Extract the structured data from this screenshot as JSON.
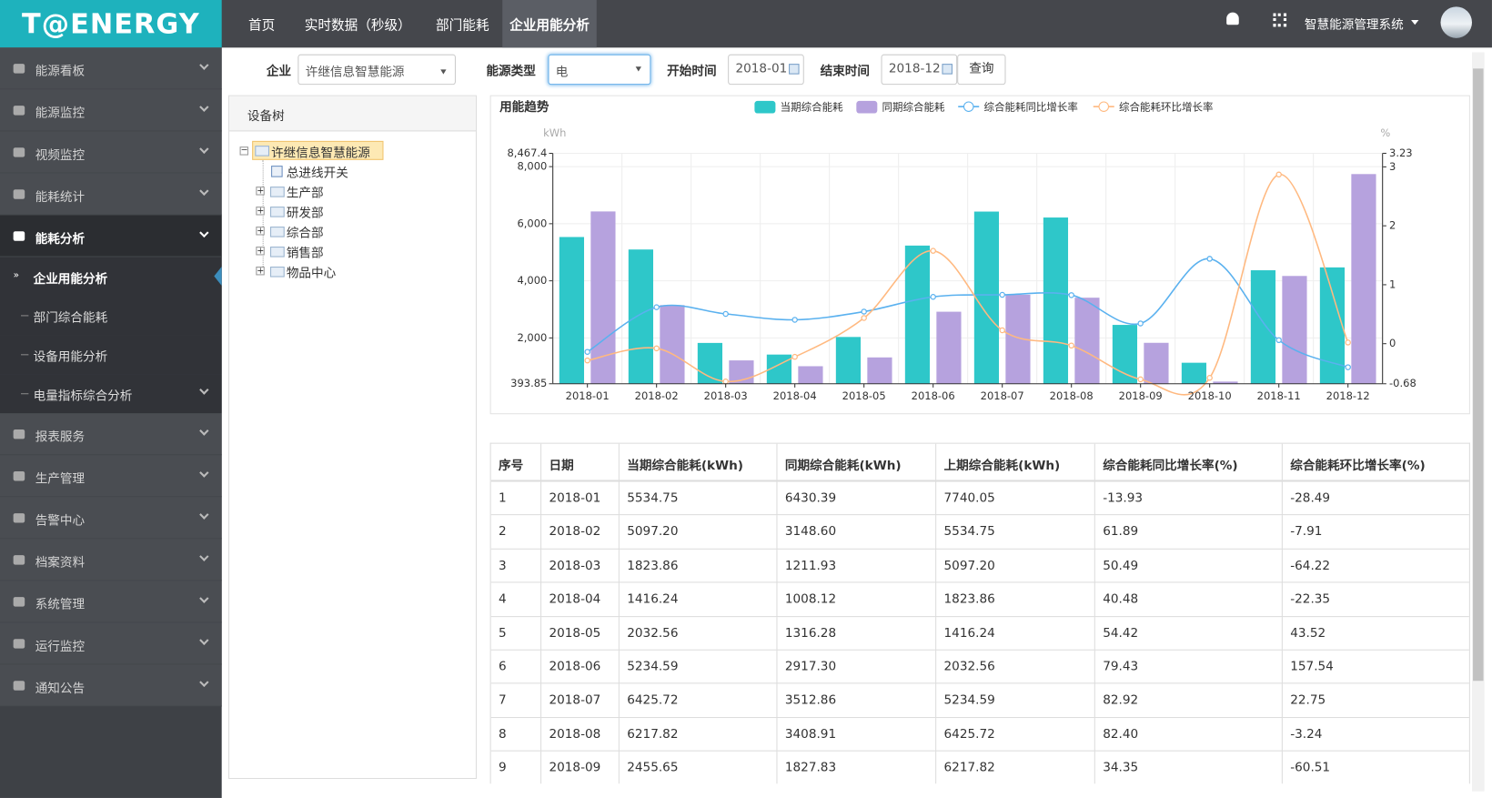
{
  "header": {
    "logo": "T@ENERGY",
    "nav": [
      "首页",
      "实时数据（秒级）",
      "部门能耗",
      "企业用能分析"
    ],
    "system": "智慧能源管理系统"
  },
  "sidebar": {
    "items": [
      {
        "label": "能源看板"
      },
      {
        "label": "能源监控"
      },
      {
        "label": "视频监控"
      },
      {
        "label": "能耗统计"
      },
      {
        "label": "能耗分析",
        "children": [
          "企业用能分析",
          "部门综合能耗",
          "设备用能分析",
          "电量指标综合分析"
        ]
      },
      {
        "label": "报表服务"
      },
      {
        "label": "生产管理"
      },
      {
        "label": "告警中心"
      },
      {
        "label": "档案资料"
      },
      {
        "label": "系统管理"
      },
      {
        "label": "运行监控"
      },
      {
        "label": "通知公告"
      }
    ]
  },
  "filters": {
    "company_label": "企业",
    "company": "许继信息智慧能源",
    "energy_label": "能源类型",
    "energy": "电",
    "start_label": "开始时间",
    "start": "2018-01",
    "end_label": "结束时间",
    "end": "2018-12",
    "query": "查询"
  },
  "tree": {
    "title": "设备树",
    "root": "许继信息智慧能源",
    "nodes": [
      "总进线开关",
      "生产部",
      "研发部",
      "综合部",
      "销售部",
      "物品中心"
    ]
  },
  "chart_data": {
    "type": "bar",
    "title": "用能趋势",
    "y_label": "kWh",
    "y2_label": "%",
    "categories": [
      "2018-01",
      "2018-02",
      "2018-03",
      "2018-04",
      "2018-05",
      "2018-06",
      "2018-07",
      "2018-08",
      "2018-09",
      "2018-10",
      "2018-11",
      "2018-12"
    ],
    "series": [
      {
        "name": "当期综合能耗",
        "type": "bar",
        "color": "#2ec7c9",
        "values": [
          5534.75,
          5097.2,
          1823.86,
          1416.24,
          2032.56,
          5234.59,
          6425.72,
          6217.82,
          2455.65,
          1130,
          4370,
          4470
        ]
      },
      {
        "name": "同期综合能耗",
        "type": "bar",
        "color": "#b6a2de",
        "values": [
          6430.39,
          3148.6,
          1211.93,
          1008.12,
          1316.28,
          2917.3,
          3512.86,
          3408.91,
          1827.83,
          470,
          4170,
          7740
        ]
      },
      {
        "name": "综合能耗同比增长率",
        "type": "line",
        "axis": "y2",
        "color": "#5ab1ef",
        "values": [
          -0.1393,
          0.6189,
          0.5049,
          0.4048,
          0.5442,
          0.7943,
          0.8292,
          0.824,
          0.3435,
          1.44,
          0.06,
          -0.4
        ]
      },
      {
        "name": "综合能耗环比增长率",
        "type": "line",
        "axis": "y2",
        "color": "#ffb980",
        "values": [
          -0.2849,
          -0.0791,
          -0.6422,
          -0.2235,
          0.4352,
          1.5754,
          0.2275,
          -0.0324,
          -0.6051,
          -0.58,
          2.87,
          0.02
        ]
      }
    ],
    "ylim": [
      393.85,
      8467.4
    ],
    "yticks": [
      393.85,
      {
        "value": 2000,
        "label": "2,000"
      },
      {
        "value": 4000,
        "label": "4,000"
      },
      {
        "value": 6000,
        "label": "6,000"
      },
      {
        "value": 8000,
        "label": "8,000"
      },
      {
        "value": 8467.4,
        "label": "8,467.4"
      }
    ],
    "y2lim": [
      -0.68,
      3.23
    ],
    "y2ticks": [
      -0.68,
      0,
      1,
      2,
      3,
      3.23
    ],
    "grid": true,
    "legend": "top"
  },
  "table": {
    "headers": [
      "序号",
      "日期",
      "当期综合能耗(kWh)",
      "同期综合能耗(kWh)",
      "上期综合能耗(kWh)",
      "综合能耗同比增长率(%)",
      "综合能耗环比增长率(%)"
    ],
    "rows": [
      [
        "1",
        "2018-01",
        "5534.75",
        "6430.39",
        "7740.05",
        "-13.93",
        "-28.49"
      ],
      [
        "2",
        "2018-02",
        "5097.20",
        "3148.60",
        "5534.75",
        "61.89",
        "-7.91"
      ],
      [
        "3",
        "2018-03",
        "1823.86",
        "1211.93",
        "5097.20",
        "50.49",
        "-64.22"
      ],
      [
        "4",
        "2018-04",
        "1416.24",
        "1008.12",
        "1823.86",
        "40.48",
        "-22.35"
      ],
      [
        "5",
        "2018-05",
        "2032.56",
        "1316.28",
        "1416.24",
        "54.42",
        "43.52"
      ],
      [
        "6",
        "2018-06",
        "5234.59",
        "2917.30",
        "2032.56",
        "79.43",
        "157.54"
      ],
      [
        "7",
        "2018-07",
        "6425.72",
        "3512.86",
        "5234.59",
        "82.92",
        "22.75"
      ],
      [
        "8",
        "2018-08",
        "6217.82",
        "3408.91",
        "6425.72",
        "82.40",
        "-3.24"
      ],
      [
        "9",
        "2018-09",
        "2455.65",
        "1827.83",
        "6217.82",
        "34.35",
        "-60.51"
      ]
    ]
  }
}
